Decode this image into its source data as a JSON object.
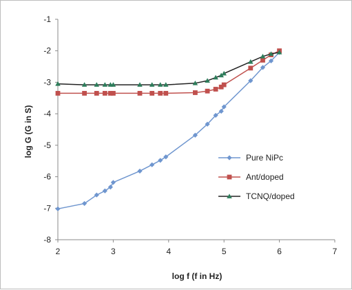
{
  "chart_data": {
    "type": "line",
    "xlabel": "log f (f in Hz)",
    "ylabel": "log G (G in S)",
    "xlim": [
      2,
      7
    ],
    "ylim": [
      -8,
      -1
    ],
    "x_ticks": [
      "2",
      "3",
      "4",
      "5",
      "6",
      "7"
    ],
    "y_ticks": [
      "-1",
      "-2",
      "-3",
      "-4",
      "-5",
      "-6",
      "-7",
      "-8"
    ],
    "grid": false,
    "legend_position": "right",
    "series": [
      {
        "name": "Pure NiPc",
        "color": "#6f96cf",
        "marker": "diamond",
        "points": [
          [
            2.0,
            -7.02
          ],
          [
            2.48,
            -6.85
          ],
          [
            2.7,
            -6.58
          ],
          [
            2.85,
            -6.45
          ],
          [
            2.95,
            -6.33
          ],
          [
            3.0,
            -6.18
          ],
          [
            3.48,
            -5.82
          ],
          [
            3.7,
            -5.62
          ],
          [
            3.85,
            -5.48
          ],
          [
            3.95,
            -5.37
          ],
          [
            4.48,
            -4.68
          ],
          [
            4.7,
            -4.33
          ],
          [
            4.85,
            -4.05
          ],
          [
            4.95,
            -3.92
          ],
          [
            5.0,
            -3.78
          ],
          [
            5.48,
            -2.95
          ],
          [
            5.7,
            -2.53
          ],
          [
            5.85,
            -2.32
          ],
          [
            6.0,
            -2.05
          ]
        ]
      },
      {
        "name": "Ant/doped",
        "color": "#c0504d",
        "marker": "square",
        "points": [
          [
            2.0,
            -3.35
          ],
          [
            2.48,
            -3.35
          ],
          [
            2.7,
            -3.35
          ],
          [
            2.85,
            -3.35
          ],
          [
            2.95,
            -3.35
          ],
          [
            3.0,
            -3.35
          ],
          [
            3.48,
            -3.35
          ],
          [
            3.7,
            -3.35
          ],
          [
            3.85,
            -3.35
          ],
          [
            3.95,
            -3.35
          ],
          [
            4.48,
            -3.33
          ],
          [
            4.7,
            -3.28
          ],
          [
            4.85,
            -3.22
          ],
          [
            4.95,
            -3.15
          ],
          [
            5.0,
            -3.08
          ],
          [
            5.48,
            -2.55
          ],
          [
            5.7,
            -2.3
          ],
          [
            5.85,
            -2.13
          ],
          [
            6.0,
            -2.0
          ]
        ]
      },
      {
        "name": "TCNQ/doped",
        "color": "#222222",
        "marker": "triangle",
        "marker_color": "#2e7d5b",
        "points": [
          [
            2.0,
            -3.05
          ],
          [
            2.48,
            -3.08
          ],
          [
            2.7,
            -3.08
          ],
          [
            2.85,
            -3.08
          ],
          [
            2.95,
            -3.08
          ],
          [
            3.0,
            -3.08
          ],
          [
            3.48,
            -3.08
          ],
          [
            3.7,
            -3.08
          ],
          [
            3.85,
            -3.08
          ],
          [
            3.95,
            -3.08
          ],
          [
            4.48,
            -3.03
          ],
          [
            4.7,
            -2.95
          ],
          [
            4.85,
            -2.85
          ],
          [
            4.95,
            -2.78
          ],
          [
            5.0,
            -2.72
          ],
          [
            5.48,
            -2.35
          ],
          [
            5.7,
            -2.18
          ],
          [
            5.85,
            -2.1
          ],
          [
            6.0,
            -2.05
          ]
        ]
      }
    ]
  }
}
